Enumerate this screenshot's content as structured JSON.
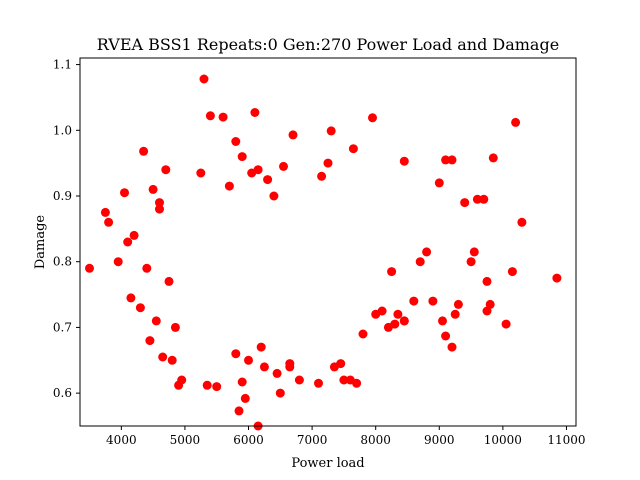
{
  "chart_data": {
    "type": "scatter",
    "title": "RVEA BSS1 Repeats:0 Gen:270 Power Load and Damage",
    "xlabel": "Power load",
    "ylabel": "Damage",
    "xlim": [
      3350,
      11150
    ],
    "ylim": [
      0.55,
      1.11
    ],
    "xticks": [
      4000,
      5000,
      6000,
      7000,
      8000,
      9000,
      10000,
      11000
    ],
    "yticks": [
      0.6,
      0.7,
      0.8,
      0.9,
      1.0,
      1.1
    ],
    "xtick_labels": [
      "4000",
      "5000",
      "6000",
      "7000",
      "8000",
      "9000",
      "10000",
      "11000"
    ],
    "ytick_labels": [
      "0.6",
      "0.7",
      "0.8",
      "0.9",
      "1.0",
      "1.1"
    ],
    "grid": false,
    "legend": "none",
    "marker_color": "#ff0000",
    "series": [
      {
        "x": [
          3500,
          3750,
          3800,
          3950,
          4050,
          4100,
          4150,
          4200,
          4300,
          4350,
          4400,
          4450,
          4500,
          4550,
          4600,
          4650,
          4700,
          4750,
          4800,
          4850,
          5300,
          5400,
          5600,
          5800,
          5900,
          6100,
          6700,
          7300,
          7950,
          6150,
          5850,
          6500,
          5950,
          6250,
          5900,
          6650,
          7700,
          7450,
          7650,
          8450,
          9100,
          9550,
          9200,
          9750,
          9850,
          10200,
          10150,
          10300,
          10850,
          9600,
          9300,
          9500,
          9400,
          9700,
          9100,
          9050,
          9000,
          8700,
          8800,
          8900,
          8600,
          8450,
          8300,
          8250,
          8100,
          10050,
          9800,
          9750,
          4900,
          5350,
          4950,
          5500,
          5800,
          6000,
          6200,
          6450,
          6650,
          6800,
          7100,
          7350,
          7500,
          7600,
          7800,
          8000,
          8200,
          8350,
          8450,
          9250,
          9200,
          6050,
          6300,
          6550,
          6150,
          7150,
          7250,
          6400,
          5700,
          5250,
          4600
        ],
        "y": [
          0.79,
          0.875,
          0.86,
          0.8,
          0.905,
          0.83,
          0.745,
          0.84,
          0.73,
          0.968,
          0.79,
          0.68,
          0.91,
          0.71,
          0.88,
          0.655,
          0.94,
          0.77,
          0.65,
          0.7,
          1.078,
          1.022,
          1.02,
          0.983,
          0.96,
          1.027,
          0.993,
          0.999,
          1.019,
          0.55,
          0.573,
          0.6,
          0.592,
          0.64,
          0.617,
          0.645,
          0.615,
          0.645,
          0.972,
          0.953,
          0.955,
          0.815,
          0.955,
          0.77,
          0.958,
          1.012,
          0.785,
          0.86,
          0.775,
          0.895,
          0.735,
          0.8,
          0.89,
          0.895,
          0.687,
          0.71,
          0.92,
          0.8,
          0.815,
          0.74,
          0.74,
          0.71,
          0.705,
          0.785,
          0.725,
          0.705,
          0.735,
          0.725,
          0.612,
          0.612,
          0.62,
          0.61,
          0.66,
          0.65,
          0.67,
          0.63,
          0.64,
          0.62,
          0.615,
          0.64,
          0.62,
          0.62,
          0.69,
          0.72,
          0.7,
          0.72,
          0.71,
          0.72,
          0.67,
          0.935,
          0.925,
          0.945,
          0.94,
          0.93,
          0.95,
          0.9,
          0.915,
          0.935,
          0.89
        ]
      }
    ]
  }
}
